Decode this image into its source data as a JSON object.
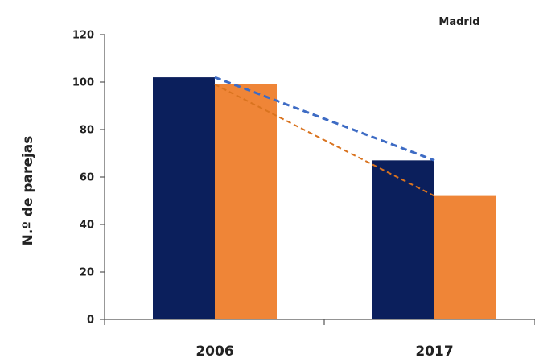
{
  "chart_data": {
    "type": "bar",
    "title": "Madrid",
    "ylabel": "N.º de parejas",
    "xlabel": "",
    "categories": [
      "2006",
      "2017"
    ],
    "series": [
      {
        "values": [
          102,
          67
        ],
        "color": "#0b1f5c"
      },
      {
        "values": [
          99,
          52
        ],
        "color": "#ef8537"
      }
    ],
    "trend_lines": [
      {
        "series_index": 0,
        "from": 102,
        "to": 67,
        "style": "dashed",
        "color": "#3d6bc4"
      },
      {
        "series_index": 1,
        "from": 99,
        "to": 52,
        "style": "dashed",
        "color": "#d9731f"
      }
    ],
    "ylim": [
      0,
      120
    ],
    "yticks": [
      "0",
      "20",
      "40",
      "60",
      "80",
      "100",
      "120"
    ],
    "grid": false,
    "legend": "none"
  }
}
